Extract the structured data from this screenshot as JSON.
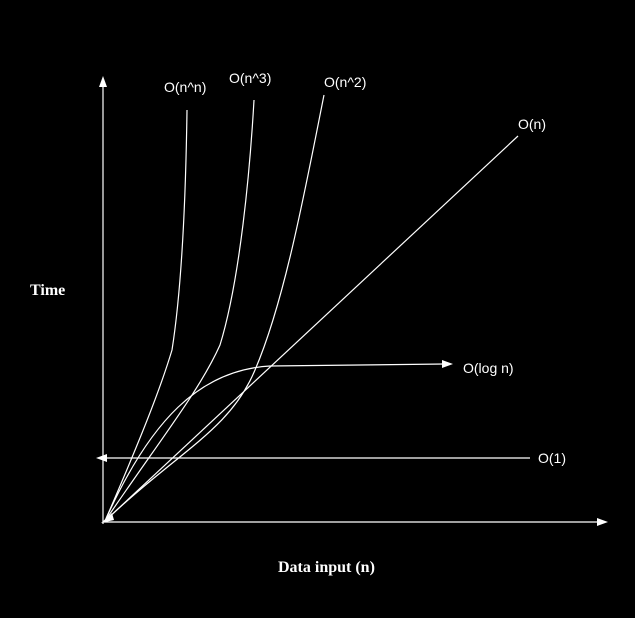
{
  "axes": {
    "y_label": "Time",
    "x_label": "Data input (n)"
  },
  "curves": [
    {
      "id": "n-pow-n",
      "label": "O(n^n)"
    },
    {
      "id": "n-cubed",
      "label": "O(n^3)"
    },
    {
      "id": "n-squared",
      "label": "O(n^2)"
    },
    {
      "id": "linear",
      "label": "O(n)"
    },
    {
      "id": "log-n",
      "label": "O(log n)"
    },
    {
      "id": "constant",
      "label": "O(1)"
    }
  ],
  "colors": {
    "background": "#000000",
    "foreground": "#ffffff"
  }
}
